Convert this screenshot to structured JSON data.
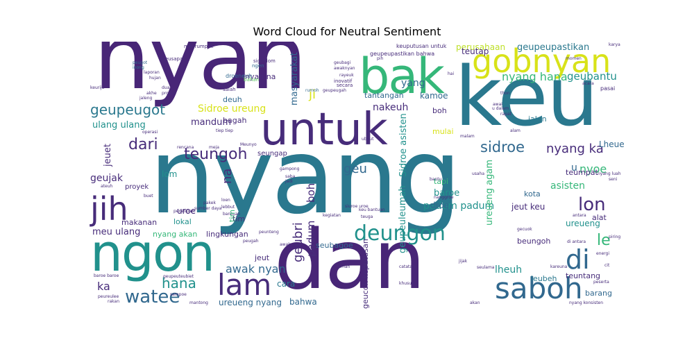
{
  "title": "Word Cloud for Neutral Sentiment",
  "colors": {
    "dark_purple": "#472c7a",
    "purple": "#482677",
    "blue": "#31688e",
    "teal": "#2a788e",
    "teal_green": "#21918c",
    "green": "#35b779",
    "light_green": "#5ec962",
    "yellow": "#d8e219",
    "light_yellow": "#bddf26"
  },
  "words": {
    "nyang": "nyang",
    "nyan": "nyan",
    "keu": "keu",
    "dan": "dan",
    "untuk": "untuk",
    "ngon": "ngon",
    "bak": "bak",
    "gobnyan": "gobnyan",
    "jih": "jih",
    "saboh": "saboh",
    "lam": "lam",
    "di": "di",
    "deungon": "deungon",
    "watee": "watee",
    "geupeugot": "geupeugot",
    "dari": "dari",
    "teungoh": "teungoh",
    "sidroe": "sidroe",
    "nyang_ka": "nyang ka",
    "lon": "lon",
    "hana": "hana",
    "nyang_hana": "nyang hana",
    "geubantu": "geubantu",
    "geupeupastikan": "geupeupastikan",
    "perusahaan": "perusahaan",
    "yang": "yang",
    "teutap": "teutap",
    "ji": "ji",
    "kamoe": "kamoe",
    "nakeuh": "nakeuh",
    "tantangan": "tantangan",
    "nyan_na": "nyan na",
    "masyarakat": "masyarakat",
    "sidroe_ureung": "Sidroe ureung",
    "deuh": "deuh",
    "bagah": "bagah",
    "mandum": "mandum",
    "ulang_ulang": "ulang ulang",
    "geu": "geu",
    "geujak": "geujak",
    "jeuet": "jeuet",
    "lom": "lom",
    "na": "na",
    "boh": "boh",
    "nyoe": "nyoe",
    "le": "le",
    "asisten": "asisten",
    "teumpat": "teumpat",
    "lheueh_cap": "Lheueh",
    "uroe": "uroe",
    "awak_nyan": "awak nyan",
    "geubri": "geubri",
    "padum": "padum",
    "padum_padum": "padum padum",
    "ureueng_agam": "ureueng agam",
    "geupeuleumah": "geupeuleumah",
    "sidroe_asisten": "Sidroe asisten",
    "droe": "droe",
    "baroe": "baroe",
    "tapi": "tapi",
    "jeut_keu": "jeut keu",
    "ureueng": "ureueng",
    "lheuh": "lheuh",
    "ka": "ka",
    "cara": "cara",
    "ureueng_nyang": "ureueng nyang",
    "bahwa": "bahwa",
    "meu_ulang": "meu ulang",
    "makanan": "makanan",
    "lokal": "lokal",
    "lingkungan": "lingkungan",
    "nyang_akan": "nyang akan",
    "seubagoe": "seubagoe",
    "jeut": "jeut",
    "proyek": "proyek",
    "kota": "kota",
    "jalan": "jalan",
    "beungoh": "beungoh",
    "alat": "alat",
    "leubeh": "leubeh",
    "teuntang": "teuntang",
    "barang": "barang",
    "geucok_keputusan": "geucok keputusan",
    "tim": "tim",
    "u": "u",
    "seungap": "seungap",
    "mulai": "mulai",
    "droeneuh": "droeneuh",
    "keuputusan_untuk": "keuputusan untuk",
    "geupeupastikan_bahwa": "geupeupastikan bahwa",
    "meurumpok": "meurumpok",
    "sigohlom": "sigohlom",
    "ngen": "ngen",
    "bagian": "bagian",
    "salah": "salah",
    "inovatif": "inovatif",
    "secara": "secara",
    "bahan": "bahan",
    "meusapat": "meusapat",
    "peugot": "peugot",
    "inong": "inong",
    "dua": "dua",
    "rumoh": "rumoh",
    "geupeugah": "geupeugah",
    "geubagi": "geubagi",
    "awaknyan": "awaknyan",
    "pih": "pih",
    "rayeuk": "rayeuk",
    "pasai": "pasai",
    "karya": "karya",
    "hai": "hai",
    "thon": "thon",
    "awai": "awai",
    "u_dalam": "u dalam",
    "rapat": "rapat",
    "alam": "alam",
    "ubeut": "ubeut",
    "malam": "malam",
    "bantu": "bantu",
    "usaha": "usaha",
    "gampong": "gampong",
    "peunteng": "peunteng",
    "bantuan": "bantuan",
    "penelitian": "penelitian",
    "pakek": "pakek",
    "rencana": "rencana",
    "meja": "meja",
    "meunyo": "Meunyo",
    "saba": "saba",
    "jadi": "jadi",
    "sumber_daya": "sumber daya",
    "kegiatan": "kegiatan",
    "keu_bantuan": "keu bantuan",
    "siuroe_uroe": "siuroe uroe",
    "teuga": "teuga",
    "catatan": "catatan",
    "taman": "taman",
    "jijak": "jijak",
    "seulama": "seulama",
    "khusus": "khusus",
    "kareuna": "kareuna",
    "energi": "energi",
    "piring": "piring",
    "di_antara": "di antara",
    "cit": "cit",
    "peserta": "peserta",
    "akan": "akan",
    "nyang_konsisten": "nyang konsisten",
    "baroe_baroe": "baroe baroe",
    "peureulee": "peureulee",
    "rakan": "rakan",
    "sampoe": "sampoe",
    "mantong": "mantong",
    "geupeuteubiet": "geupeuteubiet",
    "laporan": "laporan",
    "hujan": "hujan",
    "akhe": "akhe",
    "jaleng": "jaleng",
    "produk": "produk",
    "gecuok": "gecuok",
    "nanggroe": "nanggroe",
    "peugah": "peugah",
    "awak": "awak",
    "tiep_tiep": "tiep tiep",
    "keurija": "keurija",
    "operasi": "operasi",
    "buet": "buet",
    "ateuh": "ateuh",
    "lebbut": "lebbut",
    "loen": "loen",
    "momen": "momen",
    "nyang_luah": "nyang luah",
    "seni": "seni",
    "antara": "antara",
    "acara": "acara"
  }
}
